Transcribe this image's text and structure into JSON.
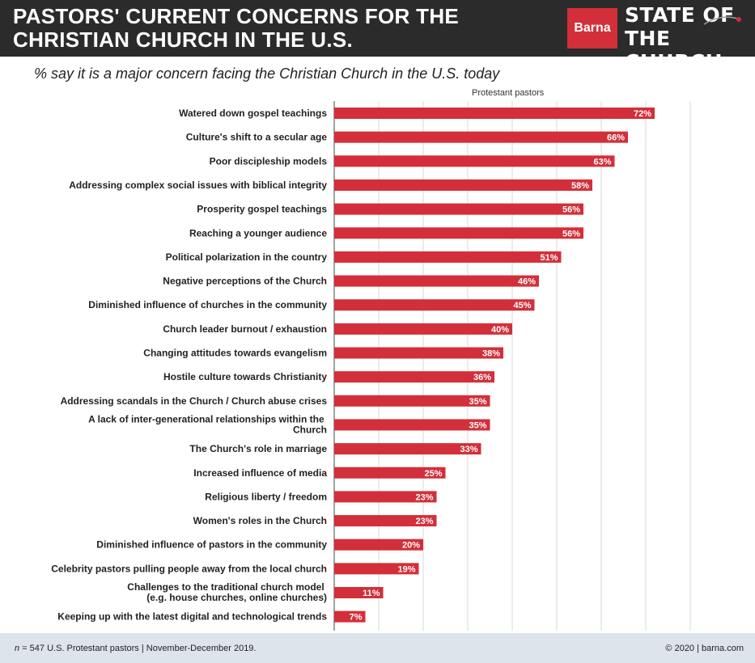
{
  "header": {
    "title": "PASTORS' CURRENT CONCERNS FOR THE CHRISTIAN CHURCH IN THE U.S.",
    "brand": "Barna",
    "report_line1": "STATE OF",
    "report_line2": "THE CHURCH"
  },
  "colors": {
    "bar": "#d32f3a",
    "header_bg": "#2b2b2b",
    "footer_bg": "#dde4ec",
    "grid": "#d9d9d9"
  },
  "chart_data": {
    "type": "bar",
    "orientation": "horizontal",
    "subtitle": "% say it is a major concern facing the Christian Church in the U.S. today",
    "series": [
      {
        "name": "Protestant pastors",
        "values": [
          72,
          66,
          63,
          58,
          56,
          56,
          51,
          46,
          45,
          40,
          38,
          36,
          35,
          35,
          33,
          25,
          23,
          23,
          20,
          19,
          11,
          7
        ]
      }
    ],
    "categories": [
      "Watered down gospel teachings",
      "Culture's shift to a secular age",
      "Poor discipleship models",
      "Addressing complex social issues with biblical integrity",
      "Prosperity gospel teachings",
      "Reaching a younger audience",
      "Political polarization in the country",
      "Negative perceptions of the Church",
      "Diminished influence of churches in the community",
      "Church leader burnout / exhaustion",
      "Changing attitudes towards evangelism",
      "Hostile culture towards Christianity",
      "Addressing scandals in the Church / Church abuse crises",
      "A lack of inter-generational relationships within the Church",
      "The Church's role in marriage",
      "Increased influence of media",
      "Religious liberty / freedom",
      "Women's roles in the Church",
      "Diminished influence of pastors in the community",
      "Celebrity pastors pulling people away from the local church",
      "Challenges to the traditional church model (e.g. house churches, online churches)",
      "Keeping up with the latest digital and technological trends"
    ],
    "value_labels": [
      "72%",
      "66%",
      "63%",
      "58%",
      "56%",
      "56%",
      "51%",
      "46%",
      "45%",
      "40%",
      "38%",
      "36%",
      "35%",
      "35%",
      "33%",
      "25%",
      "23%",
      "23%",
      "20%",
      "19%",
      "11%",
      "7%"
    ],
    "xlim": [
      0,
      80
    ],
    "grid": true,
    "legend": "top"
  },
  "footer": {
    "sample_n": "n",
    "sample_text": " = 547 U.S. Protestant pastors | November-December 2019.",
    "copyright": "© 2020 | barna.com"
  }
}
